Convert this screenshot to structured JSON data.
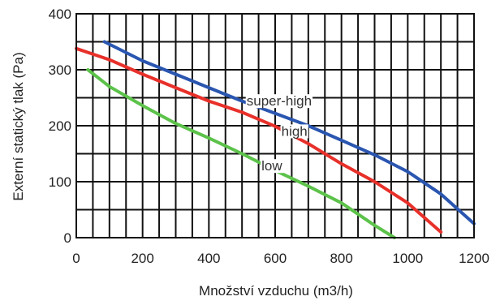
{
  "chart_data": {
    "type": "line",
    "xlabel": "Množství vzduchu (m3/h)",
    "ylabel": "Externí statický tlak (Pa)",
    "xlim": [
      0,
      1200
    ],
    "ylim": [
      0,
      400
    ],
    "x_ticks": [
      "0",
      "200",
      "400",
      "600",
      "800",
      "1000",
      "1200"
    ],
    "y_ticks": [
      "0",
      "100",
      "200",
      "300",
      "400"
    ],
    "grid": true,
    "series": [
      {
        "name": "super-high",
        "color": "#2a56b0",
        "points": [
          [
            85,
            350
          ],
          [
            200,
            316
          ],
          [
            300,
            292
          ],
          [
            400,
            268
          ],
          [
            500,
            244
          ],
          [
            600,
            222
          ],
          [
            700,
            200
          ],
          [
            800,
            174
          ],
          [
            900,
            148
          ],
          [
            1000,
            118
          ],
          [
            1100,
            78
          ],
          [
            1200,
            25
          ]
        ]
      },
      {
        "name": "high",
        "color": "#e8302a",
        "points": [
          [
            0,
            338
          ],
          [
            100,
            318
          ],
          [
            200,
            292
          ],
          [
            300,
            268
          ],
          [
            400,
            244
          ],
          [
            500,
            224
          ],
          [
            600,
            199
          ],
          [
            700,
            168
          ],
          [
            800,
            132
          ],
          [
            900,
            100
          ],
          [
            1000,
            62
          ],
          [
            1100,
            10
          ]
        ]
      },
      {
        "name": "low",
        "color": "#5cc24a",
        "points": [
          [
            35,
            300
          ],
          [
            100,
            270
          ],
          [
            200,
            236
          ],
          [
            300,
            204
          ],
          [
            400,
            178
          ],
          [
            500,
            150
          ],
          [
            600,
            120
          ],
          [
            700,
            92
          ],
          [
            800,
            62
          ],
          [
            900,
            22
          ],
          [
            960,
            0
          ]
        ]
      }
    ]
  }
}
